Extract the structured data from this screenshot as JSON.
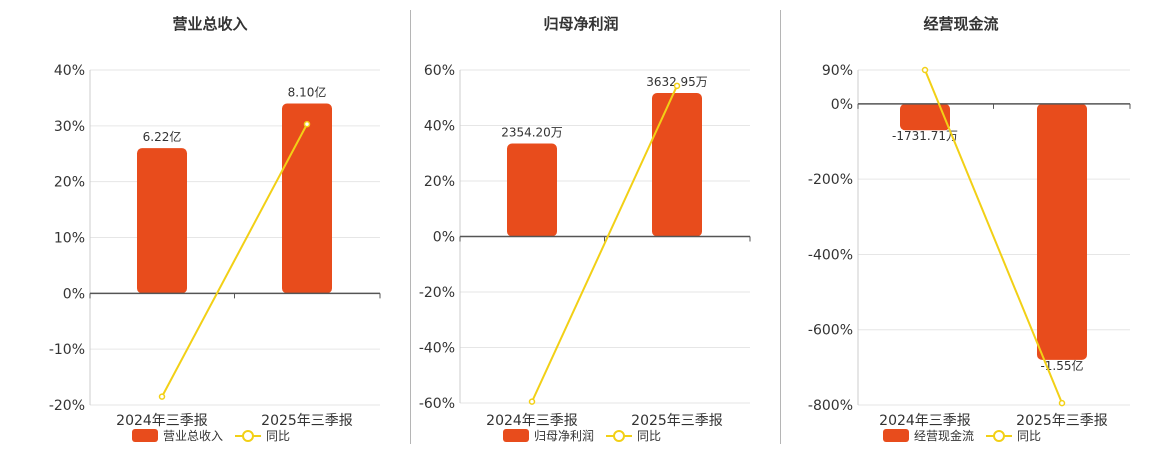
{
  "legend": {
    "bar_color": "#E84C1C",
    "line_color": "#F2D016"
  },
  "chart_data": [
    {
      "type": "bar",
      "title": "营业总收入",
      "categories": [
        "2024年三季报",
        "2025年三季报"
      ],
      "y_axis": {
        "min": -20,
        "max": 40,
        "ticks": [
          "40%",
          "30%",
          "20%",
          "10%",
          "0%",
          "-10%",
          "-20%"
        ],
        "tick_values": [
          40,
          30,
          20,
          10,
          0,
          -10,
          -20
        ]
      },
      "series": [
        {
          "name": "营业总收入",
          "kind": "bar",
          "values": [
            26,
            34
          ],
          "labels": [
            "6.22亿",
            "8.10亿"
          ]
        },
        {
          "name": "同比",
          "kind": "line",
          "values": [
            -18.5,
            30.3
          ]
        }
      ]
    },
    {
      "type": "bar",
      "title": "归母净利润",
      "categories": [
        "2024年三季报",
        "2025年三季报"
      ],
      "y_axis": {
        "min": -60,
        "max": 60,
        "ticks": [
          "60%",
          "40%",
          "20%",
          "0%",
          "-20%",
          "-40%",
          "-60%"
        ],
        "tick_values": [
          60,
          40,
          20,
          0,
          -20,
          -40,
          -60
        ]
      },
      "series": [
        {
          "name": "归母净利润",
          "kind": "bar",
          "values": [
            33.5,
            51.7
          ],
          "labels": [
            "2354.20万",
            "3632.95万"
          ]
        },
        {
          "name": "同比",
          "kind": "line",
          "values": [
            -59.5,
            54.3
          ]
        }
      ]
    },
    {
      "type": "bar",
      "title": "经营现金流",
      "categories": [
        "2024年三季报",
        "2025年三季报"
      ],
      "y_axis": {
        "min": -800,
        "max": 90,
        "ticks": [
          "90%",
          "0%",
          "-200%",
          "-400%",
          "-600%",
          "-800%"
        ],
        "tick_values": [
          90,
          0,
          -200,
          -400,
          -600,
          -800
        ]
      },
      "series": [
        {
          "name": "经营现金流",
          "kind": "bar",
          "values": [
            -70,
            -680
          ],
          "labels": [
            "-1731.71万",
            "-1.55亿"
          ]
        },
        {
          "name": "同比",
          "kind": "line",
          "values": [
            90,
            -795
          ]
        }
      ]
    }
  ]
}
